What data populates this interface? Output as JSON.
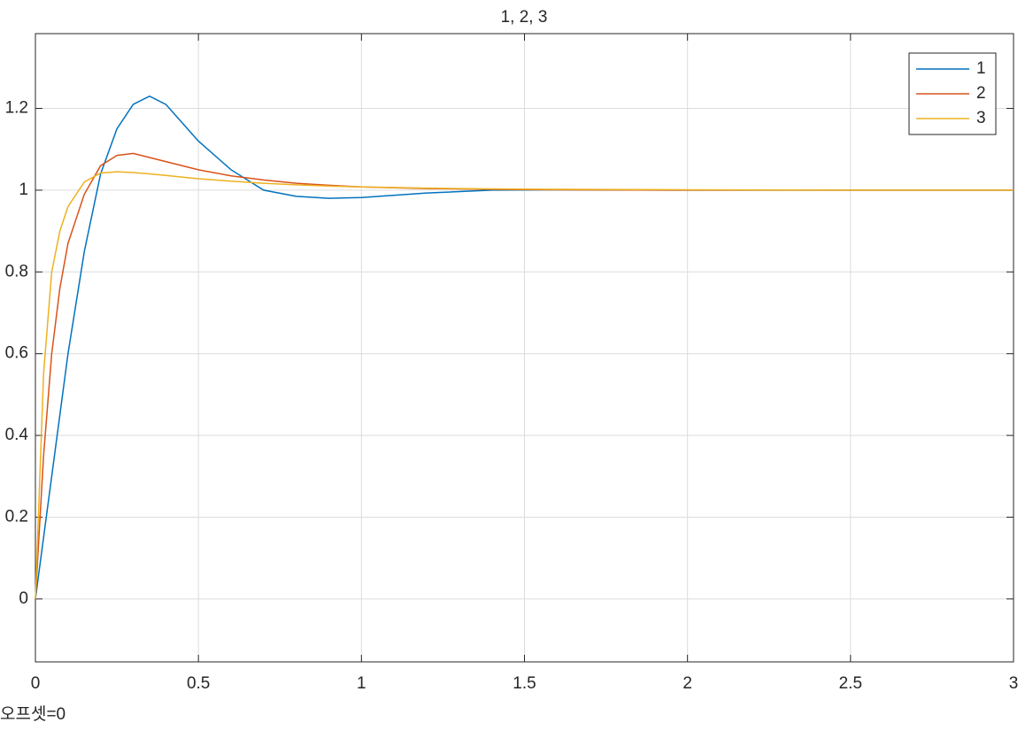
{
  "chart_data": {
    "type": "line",
    "title": "1, 2, 3",
    "annotation": "오프셋=0",
    "x": [
      0,
      0.025,
      0.05,
      0.075,
      0.1,
      0.15,
      0.2,
      0.25,
      0.3,
      0.35,
      0.4,
      0.5,
      0.6,
      0.7,
      0.8,
      0.9,
      1.0,
      1.2,
      1.4,
      1.6,
      2.0,
      2.5,
      3.0
    ],
    "series": [
      {
        "name": "1",
        "color": "#0072bd",
        "values": [
          0,
          0.15,
          0.3,
          0.45,
          0.6,
          0.85,
          1.04,
          1.15,
          1.21,
          1.23,
          1.21,
          1.12,
          1.05,
          1.0,
          0.985,
          0.98,
          0.982,
          0.993,
          1.0,
          1.001,
          1.0,
          1.0,
          1.0
        ]
      },
      {
        "name": "2",
        "color": "#d95319",
        "values": [
          0,
          0.35,
          0.6,
          0.76,
          0.87,
          0.99,
          1.06,
          1.085,
          1.09,
          1.08,
          1.07,
          1.05,
          1.035,
          1.025,
          1.017,
          1.012,
          1.008,
          1.004,
          1.002,
          1.001,
          1.0,
          1.0,
          1.0
        ]
      },
      {
        "name": "3",
        "color": "#edb120",
        "values": [
          0,
          0.55,
          0.8,
          0.9,
          0.96,
          1.02,
          1.042,
          1.045,
          1.043,
          1.04,
          1.036,
          1.028,
          1.022,
          1.017,
          1.013,
          1.01,
          1.008,
          1.005,
          1.003,
          1.002,
          1.001,
          1.0,
          1.0
        ]
      }
    ],
    "xlim": [
      0,
      3
    ],
    "xticks": [
      0,
      0.5,
      1,
      1.5,
      2,
      2.5,
      3
    ],
    "ylim": [
      -0.154,
      1.383
    ],
    "yticks": [
      0,
      0.2,
      0.4,
      0.6,
      0.8,
      1,
      1.2
    ],
    "grid": true,
    "legend": "northeast"
  }
}
